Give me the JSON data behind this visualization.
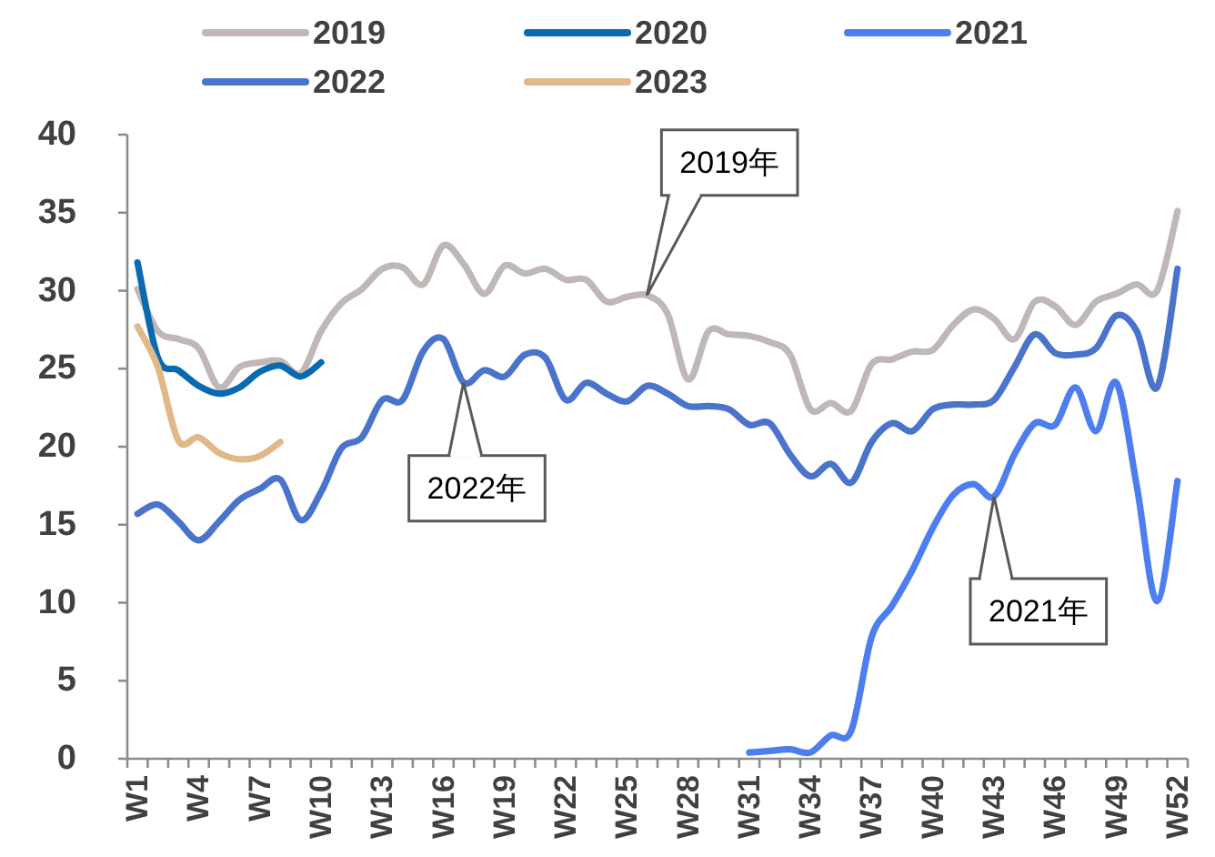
{
  "chart_data": {
    "type": "line",
    "legend": "top",
    "grid": false,
    "marker": "none",
    "line_style": "solid",
    "categories": [
      "W1",
      null,
      null,
      "W4",
      null,
      null,
      "W7",
      null,
      null,
      "W10",
      null,
      null,
      "W13",
      null,
      null,
      "W16",
      null,
      null,
      "W19",
      null,
      null,
      "W22",
      null,
      null,
      "W25",
      null,
      null,
      "W28",
      null,
      null,
      "W31",
      null,
      null,
      "W34",
      null,
      null,
      "W37",
      null,
      null,
      "W40",
      null,
      null,
      "W43",
      null,
      null,
      "W46",
      null,
      null,
      "W49",
      null,
      null,
      "W52"
    ],
    "ylim": [
      0,
      40
    ],
    "yticks": [
      0,
      5,
      10,
      15,
      20,
      25,
      30,
      35,
      40
    ],
    "series": [
      {
        "name": "2019",
        "color": "#bfb8b6",
        "values": [
          30.1,
          27.4,
          26.9,
          26.3,
          23.8,
          25.1,
          25.4,
          25.5,
          24.7,
          27.4,
          29.2,
          30.1,
          31.4,
          31.5,
          30.4,
          32.9,
          31.7,
          29.8,
          31.6,
          31.1,
          31.4,
          30.7,
          30.7,
          29.3,
          29.6,
          29.7,
          28.5,
          24.3,
          27.4,
          27.2,
          27.1,
          26.7,
          25.9,
          22.4,
          22.8,
          22.3,
          25.3,
          25.6,
          26.1,
          26.2,
          27.8,
          28.8,
          28.2,
          26.9,
          29.3,
          29.0,
          27.8,
          29.3,
          29.8,
          30.4,
          30.0,
          35.1
        ]
      },
      {
        "name": "2020",
        "color": "#0a6ab0",
        "values": [
          31.8,
          25.7,
          24.9,
          23.9,
          23.4,
          23.8,
          24.8,
          25.2,
          24.5,
          25.4,
          null,
          null,
          null,
          null,
          null,
          null,
          null,
          null,
          null,
          null,
          null,
          null,
          null,
          null,
          null,
          null,
          null,
          null,
          null,
          null,
          null,
          null,
          null,
          null,
          null,
          null,
          null,
          null,
          null,
          null,
          null,
          null,
          null,
          null,
          null,
          null,
          null,
          null,
          null,
          null,
          null,
          null
        ]
      },
      {
        "name": "2021",
        "color": "#4d7ef0",
        "values": [
          null,
          null,
          null,
          null,
          null,
          null,
          null,
          null,
          null,
          null,
          null,
          null,
          null,
          null,
          null,
          null,
          null,
          null,
          null,
          null,
          null,
          null,
          null,
          null,
          null,
          null,
          null,
          null,
          null,
          null,
          0.4,
          0.5,
          0.6,
          0.4,
          1.5,
          1.8,
          7.8,
          9.8,
          12.1,
          14.8,
          16.9,
          17.6,
          16.8,
          19.5,
          21.5,
          21.4,
          23.8,
          21.0,
          24.1,
          17.5,
          10.1,
          17.8
        ]
      },
      {
        "name": "2022",
        "color": "#4a73cc",
        "values": [
          15.7,
          16.3,
          15.2,
          14.0,
          15.2,
          16.6,
          17.3,
          17.9,
          15.3,
          17.1,
          19.9,
          20.6,
          23.0,
          23.0,
          26.1,
          26.9,
          24.1,
          24.9,
          24.5,
          25.9,
          25.7,
          23.0,
          24.1,
          23.4,
          22.9,
          23.9,
          23.4,
          22.6,
          22.6,
          22.4,
          21.4,
          21.5,
          19.5,
          18.1,
          18.9,
          17.7,
          20.3,
          21.5,
          21.0,
          22.4,
          22.7,
          22.7,
          23.0,
          25.1,
          27.2,
          26.0,
          25.9,
          26.3,
          28.4,
          27.4,
          23.8,
          31.4
        ]
      },
      {
        "name": "2023",
        "color": "#e0b88a",
        "values": [
          27.7,
          25.1,
          20.4,
          20.6,
          19.6,
          19.2,
          19.4,
          20.3,
          null,
          null,
          null,
          null,
          null,
          null,
          null,
          null,
          null,
          null,
          null,
          null,
          null,
          null,
          null,
          null,
          null,
          null,
          null,
          null,
          null,
          null,
          null,
          null,
          null,
          null,
          null,
          null,
          null,
          null,
          null,
          null,
          null,
          null,
          null,
          null,
          null,
          null,
          null,
          null,
          null,
          null,
          null,
          null
        ]
      }
    ],
    "annotations": [
      "2019年",
      "2022年",
      {
        "text": "2021年",
        "x": "W43",
        "y": 16.8
      }
    ]
  }
}
